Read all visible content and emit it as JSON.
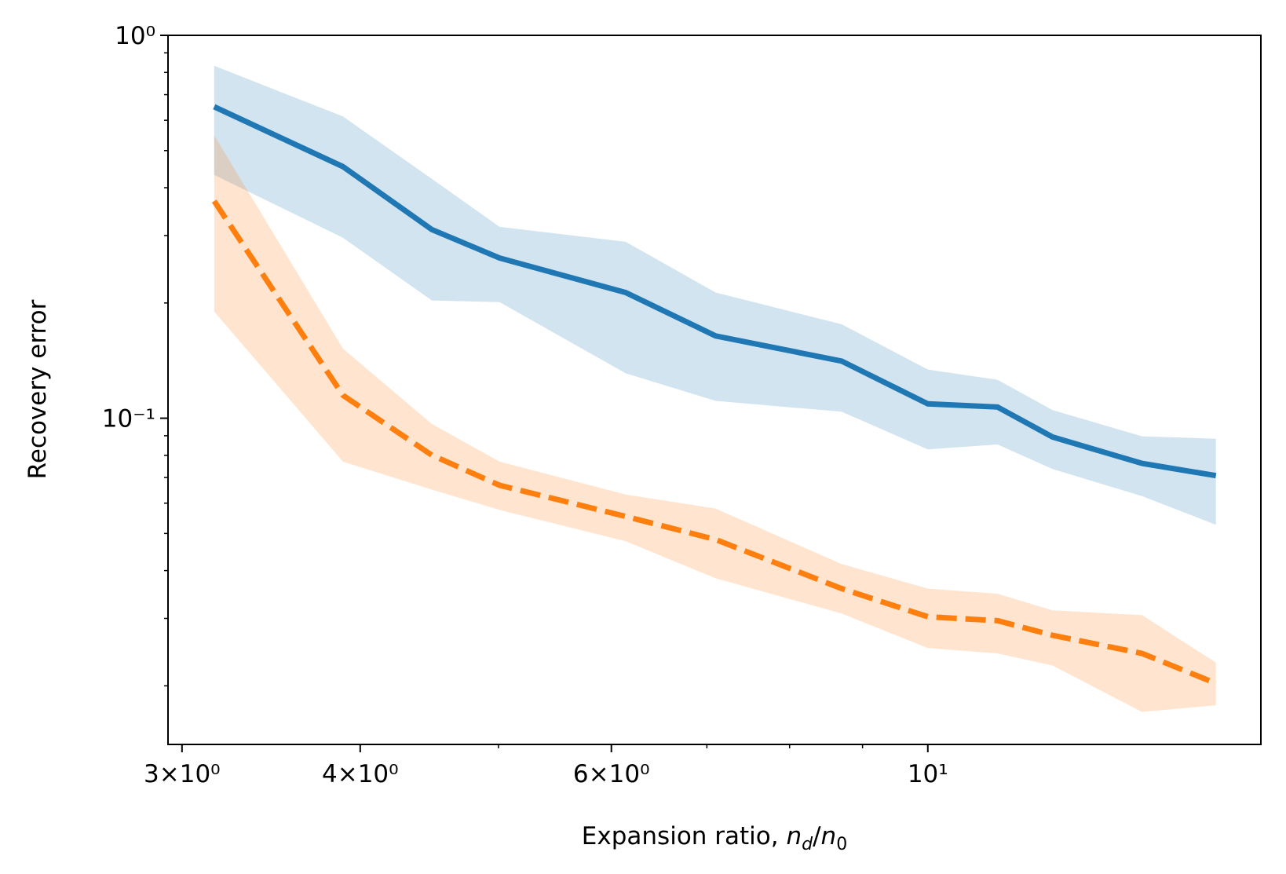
{
  "chart_data": {
    "type": "line",
    "xlabel": [
      "Expansion ratio, ",
      "n",
      "d",
      "/",
      "n",
      "0"
    ],
    "ylabel": "Recovery error",
    "x": [
      3.16,
      3.89,
      4.49,
      5.01,
      6.14,
      7.1,
      8.7,
      10.0,
      11.19,
      12.23,
      14.13,
      15.92
    ],
    "series": [
      {
        "color": "#1f77b4",
        "style": "solid",
        "values": [
          0.651,
          0.454,
          0.311,
          0.262,
          0.213,
          0.164,
          0.141,
          0.109,
          0.107,
          0.0893,
          0.0762,
          0.0708
        ],
        "upper": [
          0.833,
          0.614,
          0.422,
          0.316,
          0.289,
          0.213,
          0.176,
          0.134,
          0.126,
          0.105,
          0.0897,
          0.0884
        ],
        "lower": [
          0.432,
          0.296,
          0.203,
          0.201,
          0.131,
          0.111,
          0.104,
          0.0829,
          0.0854,
          0.0737,
          0.0626,
          0.0527
        ]
      },
      {
        "color": "#ff7f0e",
        "style": "dashed",
        "values": [
          0.369,
          0.1148,
          0.0801,
          0.0668,
          0.0554,
          0.0482,
          0.0359,
          0.0303,
          0.0296,
          0.0271,
          0.0243,
          0.0203
        ],
        "upper": [
          0.548,
          0.152,
          0.0966,
          0.077,
          0.0632,
          0.0581,
          0.0416,
          0.0359,
          0.0348,
          0.0315,
          0.0306,
          0.023
        ],
        "lower": [
          0.19,
          0.077,
          0.0651,
          0.0576,
          0.0477,
          0.0382,
          0.0309,
          0.0251,
          0.0243,
          0.0226,
          0.0171,
          0.0178
        ]
      }
    ],
    "xscale": "log",
    "yscale": "log",
    "xlim": [
      2.933,
      17.12
    ],
    "ylim": [
      0.01406,
      1
    ],
    "xticks": [
      {
        "value": 3,
        "label": "3×10⁰"
      },
      {
        "value": 4,
        "label": "4×10⁰"
      },
      {
        "value": 6,
        "label": "6×10⁰"
      },
      {
        "value": 10,
        "label": "10¹"
      }
    ],
    "xminorticks": [
      5,
      7,
      8,
      9
    ],
    "yticks": [
      {
        "value": 0.1,
        "label": "10⁻¹"
      },
      {
        "value": 1,
        "label": "10⁰"
      }
    ],
    "yminorticks": [
      0.02,
      0.03,
      0.04,
      0.05,
      0.06,
      0.07,
      0.08,
      0.09,
      0.2,
      0.3,
      0.4,
      0.5,
      0.6,
      0.7,
      0.8,
      0.9
    ],
    "band_opacity": 0.2
  }
}
